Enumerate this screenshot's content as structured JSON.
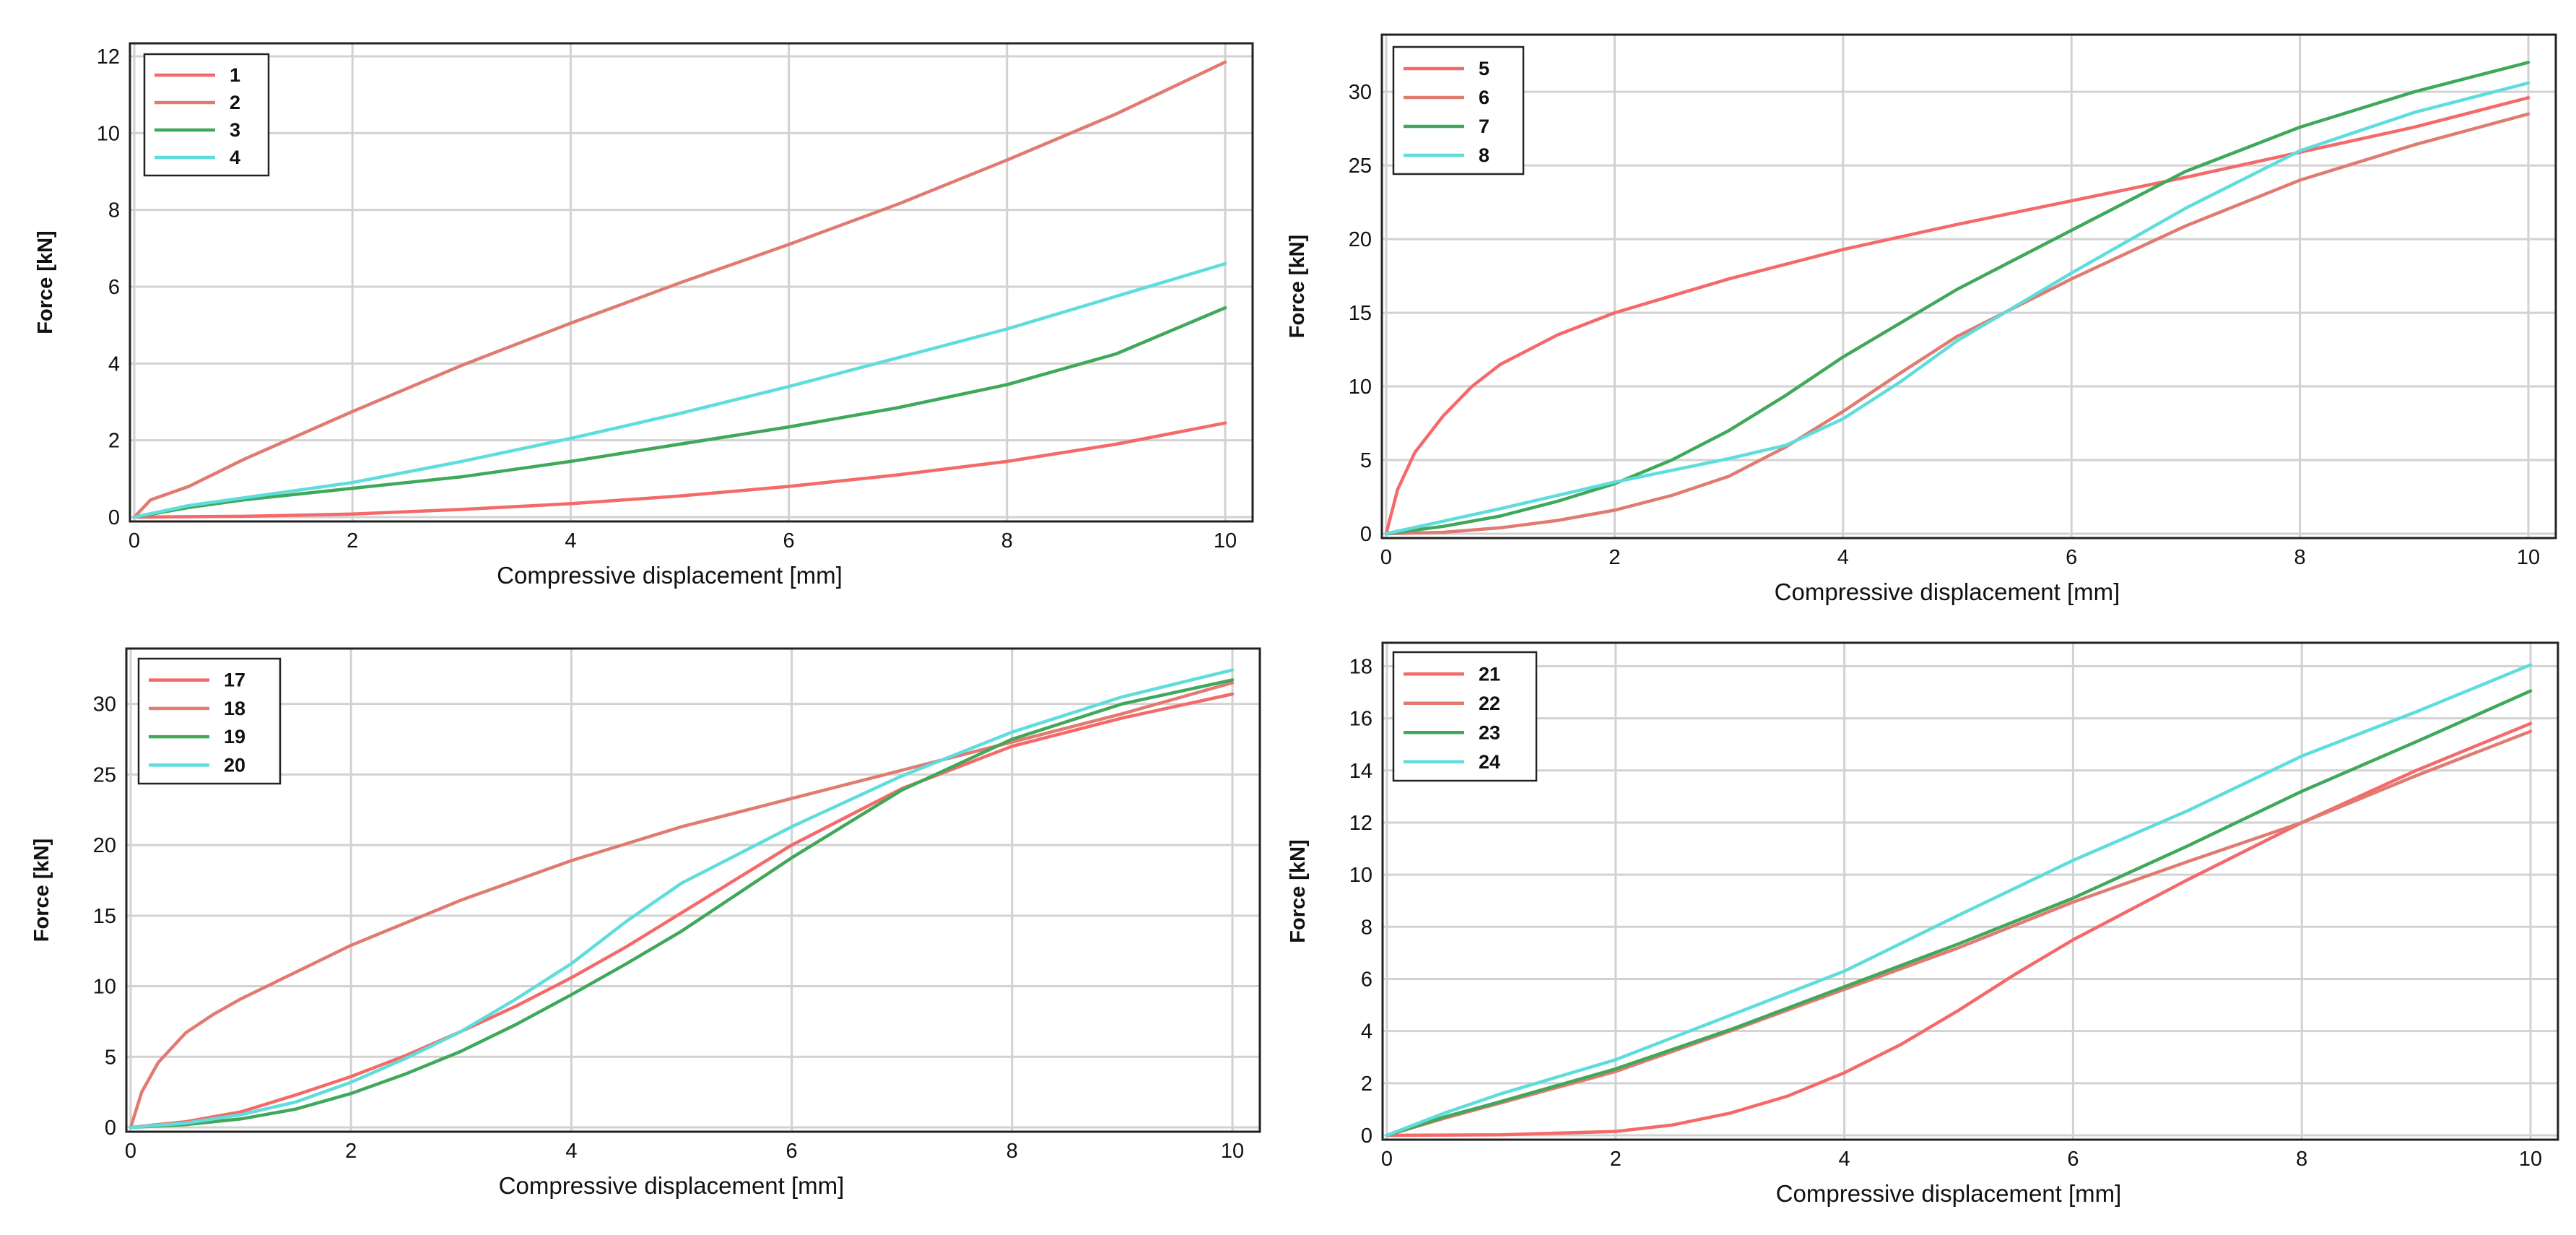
{
  "colors": {
    "red": "#f46a6a",
    "salmon": "#e07b72",
    "green": "#3fa85a",
    "cyan": "#5fdcdc",
    "grid": "#d2d2d2",
    "frame": "#222222"
  },
  "chart_data": [
    {
      "type": "line",
      "title": "",
      "xlabel": "Compressive displacement [mm]",
      "ylabel": "Force [kN]",
      "xlim": [
        0,
        10
      ],
      "ylim": [
        0,
        12
      ],
      "x_ticks": [
        0,
        2,
        4,
        6,
        8,
        10
      ],
      "y_ticks": [
        0,
        2,
        4,
        6,
        8,
        10,
        12
      ],
      "grid": true,
      "legend_position": "top-left",
      "series": [
        {
          "name": "1",
          "color": "red",
          "x": [
            0,
            1,
            2,
            3,
            4,
            5,
            6,
            7,
            8,
            9,
            10
          ],
          "values": [
            0,
            0.02,
            0.08,
            0.2,
            0.35,
            0.55,
            0.8,
            1.1,
            1.45,
            1.9,
            2.45
          ]
        },
        {
          "name": "2",
          "color": "salmon",
          "x": [
            0,
            0.15,
            0.5,
            1,
            2,
            3,
            4,
            5,
            6,
            7,
            8,
            9,
            10
          ],
          "values": [
            0,
            0.45,
            0.8,
            1.5,
            2.75,
            3.95,
            5.05,
            6.1,
            7.1,
            8.15,
            9.3,
            10.5,
            11.85
          ]
        },
        {
          "name": "3",
          "color": "green",
          "x": [
            0,
            0.5,
            1,
            2,
            3,
            4,
            5,
            6,
            7,
            8,
            9,
            10
          ],
          "values": [
            0,
            0.25,
            0.45,
            0.75,
            1.05,
            1.45,
            1.9,
            2.35,
            2.85,
            3.45,
            4.25,
            5.45
          ]
        },
        {
          "name": "4",
          "color": "cyan",
          "x": [
            0,
            0.5,
            1,
            2,
            3,
            4,
            5,
            6,
            7,
            8,
            9,
            10
          ],
          "values": [
            0,
            0.3,
            0.5,
            0.9,
            1.45,
            2.05,
            2.7,
            3.4,
            4.15,
            4.9,
            5.75,
            6.6
          ]
        }
      ]
    },
    {
      "type": "line",
      "title": "",
      "xlabel": "Compressive displacement [mm]",
      "ylabel": "Force [kN]",
      "xlim": [
        0,
        10
      ],
      "ylim": [
        0,
        33
      ],
      "x_ticks": [
        0,
        2,
        4,
        6,
        8,
        10
      ],
      "y_ticks": [
        0,
        5,
        10,
        15,
        20,
        25,
        30
      ],
      "grid": true,
      "legend_position": "top-left",
      "series": [
        {
          "name": "5",
          "color": "red",
          "x": [
            0,
            0.1,
            0.25,
            0.5,
            0.75,
            1,
            1.5,
            2,
            3,
            4,
            5,
            6,
            7,
            8,
            9,
            10
          ],
          "values": [
            0,
            3,
            5.5,
            8,
            10,
            11.5,
            13.5,
            15,
            17.3,
            19.3,
            21,
            22.6,
            24.2,
            25.9,
            27.6,
            29.6
          ]
        },
        {
          "name": "6",
          "color": "salmon",
          "x": [
            0,
            0.5,
            1,
            1.5,
            2,
            2.5,
            3,
            3.5,
            4,
            4.5,
            5,
            6,
            7,
            8,
            9,
            10
          ],
          "values": [
            0,
            0.1,
            0.4,
            0.9,
            1.6,
            2.6,
            3.9,
            5.9,
            8.3,
            10.9,
            13.4,
            17.3,
            20.9,
            24,
            26.4,
            28.5
          ]
        },
        {
          "name": "7",
          "color": "green",
          "x": [
            0,
            0.5,
            1,
            1.5,
            2,
            2.5,
            3,
            3.5,
            4,
            5,
            6,
            7,
            8,
            9,
            10
          ],
          "values": [
            0,
            0.5,
            1.2,
            2.2,
            3.4,
            5,
            7,
            9.4,
            12,
            16.6,
            20.6,
            24.6,
            27.6,
            30,
            32
          ]
        },
        {
          "name": "8",
          "color": "cyan",
          "x": [
            0,
            1,
            2,
            3,
            3.5,
            4,
            4.5,
            5,
            6,
            7,
            8,
            9,
            10
          ],
          "values": [
            0,
            1.7,
            3.5,
            5.1,
            6,
            7.8,
            10.3,
            13.1,
            17.7,
            22.1,
            26,
            28.6,
            30.6
          ]
        }
      ]
    },
    {
      "type": "line",
      "title": "",
      "xlabel": "Compressive displacement [mm]",
      "ylabel": "Force [kN]",
      "xlim": [
        0,
        10
      ],
      "ylim": [
        0,
        33
      ],
      "x_ticks": [
        0,
        2,
        4,
        6,
        8,
        10
      ],
      "y_ticks": [
        0,
        5,
        10,
        15,
        20,
        25,
        30
      ],
      "grid": true,
      "legend_position": "top-left",
      "series": [
        {
          "name": "17",
          "color": "red",
          "x": [
            0,
            0.5,
            1,
            1.5,
            2,
            2.5,
            3,
            3.5,
            4,
            4.5,
            5,
            6,
            7,
            8,
            9,
            10
          ],
          "values": [
            0,
            0.4,
            1.1,
            2.3,
            3.6,
            5.1,
            6.8,
            8.6,
            10.6,
            12.8,
            15.2,
            20,
            24,
            27,
            29,
            30.7
          ]
        },
        {
          "name": "18",
          "color": "salmon",
          "x": [
            0,
            0.1,
            0.25,
            0.5,
            0.75,
            1,
            1.5,
            2,
            3,
            4,
            5,
            6,
            7,
            8,
            9,
            10
          ],
          "values": [
            0,
            2.5,
            4.6,
            6.7,
            8,
            9.1,
            11,
            12.9,
            16.1,
            18.9,
            21.3,
            23.3,
            25.3,
            27.3,
            29.3,
            31.5
          ]
        },
        {
          "name": "19",
          "color": "green",
          "x": [
            0,
            0.5,
            1,
            1.5,
            2,
            2.5,
            3,
            3.5,
            4,
            4.5,
            5,
            6,
            7,
            8,
            9,
            10
          ],
          "values": [
            0,
            0.2,
            0.6,
            1.3,
            2.4,
            3.8,
            5.4,
            7.3,
            9.4,
            11.6,
            13.9,
            19.1,
            23.9,
            27.5,
            30,
            31.7
          ]
        },
        {
          "name": "20",
          "color": "cyan",
          "x": [
            0,
            0.5,
            1,
            1.5,
            2,
            2.5,
            3,
            3.5,
            4,
            4.5,
            5,
            6,
            7,
            8,
            9,
            10
          ],
          "values": [
            0,
            0.3,
            0.9,
            1.8,
            3.2,
            4.9,
            6.8,
            9.1,
            11.6,
            14.6,
            17.3,
            21.3,
            24.9,
            28,
            30.5,
            32.4
          ]
        }
      ]
    },
    {
      "type": "line",
      "title": "",
      "xlabel": "Compressive displacement [mm]",
      "ylabel": "Force [kN]",
      "xlim": [
        0,
        10
      ],
      "ylim": [
        0,
        18.4
      ],
      "x_ticks": [
        0,
        2,
        4,
        6,
        8,
        10
      ],
      "y_ticks": [
        0,
        2,
        4,
        6,
        8,
        10,
        12,
        14,
        16,
        18
      ],
      "grid": true,
      "legend_position": "top-left",
      "series": [
        {
          "name": "21",
          "color": "red",
          "x": [
            0,
            1,
            2,
            2.5,
            3,
            3.5,
            4,
            4.5,
            5,
            5.5,
            6,
            7,
            8,
            9,
            10
          ],
          "values": [
            0,
            0.02,
            0.15,
            0.4,
            0.85,
            1.5,
            2.4,
            3.5,
            4.8,
            6.2,
            7.5,
            9.8,
            12,
            14,
            15.8
          ]
        },
        {
          "name": "22",
          "color": "salmon",
          "x": [
            0,
            0.5,
            1,
            2,
            3,
            4,
            5,
            6,
            7,
            8,
            9,
            10
          ],
          "values": [
            0,
            0.65,
            1.25,
            2.45,
            4,
            5.6,
            7.2,
            8.95,
            10.5,
            12,
            13.8,
            15.5
          ]
        },
        {
          "name": "23",
          "color": "green",
          "x": [
            0,
            0.5,
            1,
            2,
            3,
            4,
            5,
            6,
            7,
            8,
            9,
            10
          ],
          "values": [
            0,
            0.7,
            1.3,
            2.55,
            4.05,
            5.7,
            7.35,
            9.1,
            11.1,
            13.2,
            15.1,
            17.05
          ]
        },
        {
          "name": "24",
          "color": "cyan",
          "x": [
            0,
            0.5,
            1,
            2,
            3,
            4,
            5,
            6,
            7,
            8,
            9,
            10
          ],
          "values": [
            0,
            0.85,
            1.6,
            2.9,
            4.6,
            6.3,
            8.45,
            10.55,
            12.45,
            14.55,
            16.25,
            18.05
          ]
        }
      ]
    }
  ]
}
